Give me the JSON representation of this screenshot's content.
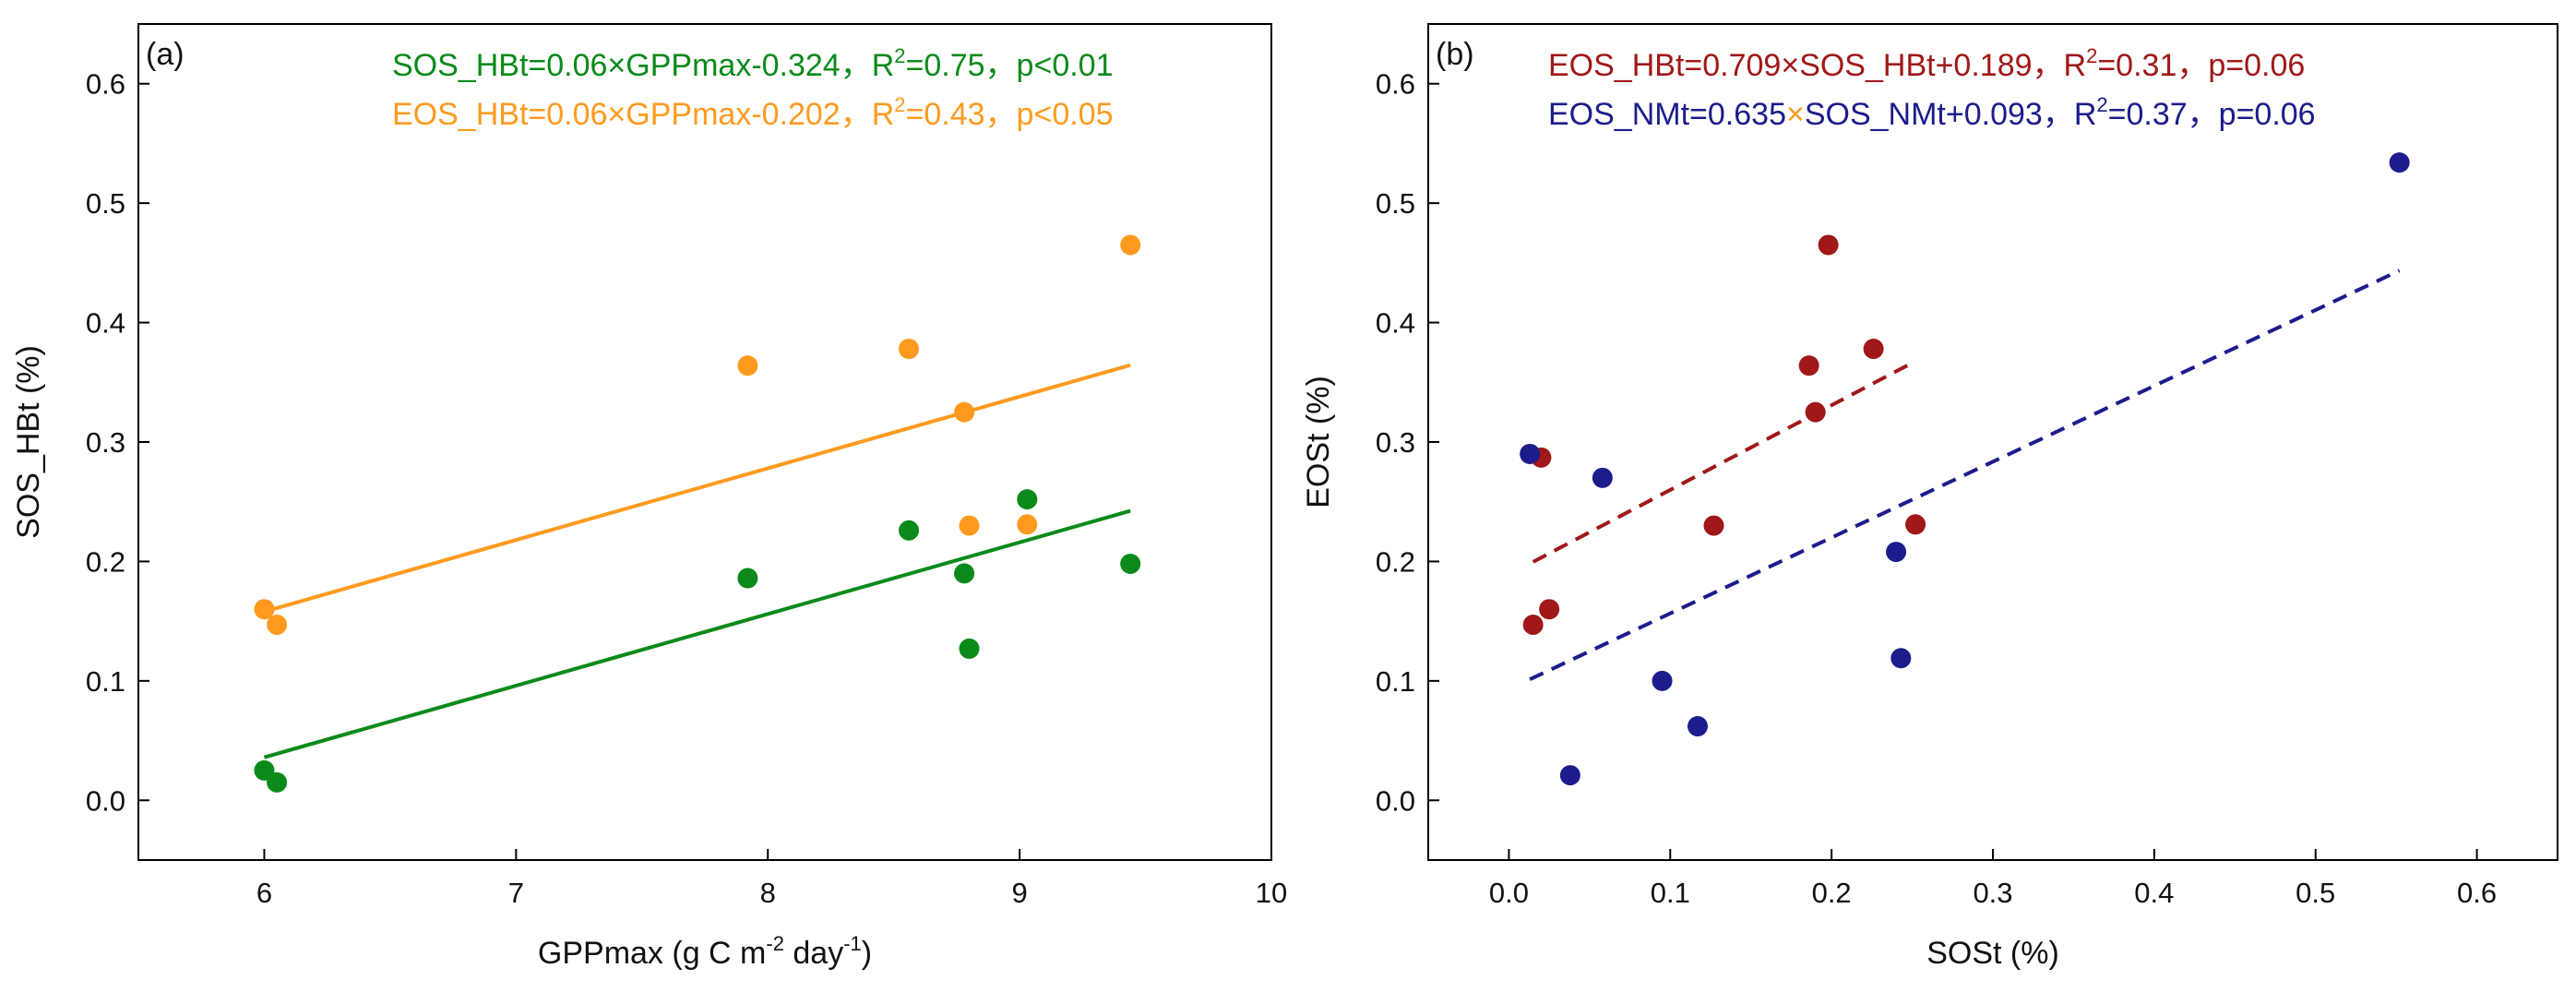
{
  "chart_data": [
    {
      "panel_label": "(a)",
      "type": "scatter",
      "xlabel": {
        "main": "GPPmax (g C m",
        "sup1": "-2",
        "mid": " day",
        "sup2": "-1",
        "end": ")"
      },
      "ylabel": "SOS_HBt (%)",
      "xlim": [
        5.5,
        10
      ],
      "ylim": [
        -0.05,
        0.65
      ],
      "xticks": [
        6,
        7,
        8,
        9,
        10
      ],
      "yticks": [
        0.0,
        0.1,
        0.2,
        0.3,
        0.4,
        0.5,
        0.6
      ],
      "series": [
        {
          "name": "SOS_HBt",
          "color": "#0a8a1a",
          "points": [
            [
              6.0,
              0.025
            ],
            [
              6.05,
              0.015
            ],
            [
              7.92,
              0.186
            ],
            [
              8.56,
              0.226
            ],
            [
              8.78,
              0.19
            ],
            [
              8.8,
              0.127
            ],
            [
              9.03,
              0.252
            ],
            [
              9.44,
              0.198
            ]
          ],
          "fit": {
            "slope": 0.06,
            "intercept": -0.324,
            "x_range": [
              6.0,
              9.44
            ],
            "dashed": false
          },
          "equation": {
            "pre": "SOS_HBt=0.06",
            "mult": "×",
            "post": "GPPmax-0.324，R",
            "sup": "2",
            "tail": "=0.75，p<0.01"
          }
        },
        {
          "name": "EOS_HBt",
          "color": "#ff9a1f",
          "points": [
            [
              6.0,
              0.16
            ],
            [
              6.05,
              0.147
            ],
            [
              7.92,
              0.364
            ],
            [
              8.56,
              0.378
            ],
            [
              8.78,
              0.325
            ],
            [
              8.8,
              0.23
            ],
            [
              9.03,
              0.231
            ],
            [
              9.44,
              0.465
            ]
          ],
          "fit": {
            "slope": 0.06,
            "intercept": -0.202,
            "x_range": [
              6.0,
              9.44
            ],
            "dashed": false
          },
          "equation": {
            "pre": "EOS_HBt=0.06",
            "mult": "×",
            "post": "GPPmax-0.202，R",
            "sup": "2",
            "tail": "=0.43，p<0.05"
          }
        }
      ]
    },
    {
      "panel_label": "(b)",
      "type": "scatter",
      "xlabel": {
        "main": "SOSt (%)"
      },
      "ylabel": "EOSt (%)",
      "xlim": [
        -0.05,
        0.65
      ],
      "ylim": [
        -0.05,
        0.65
      ],
      "xticks": [
        0.0,
        0.1,
        0.2,
        0.3,
        0.4,
        0.5,
        0.6
      ],
      "yticks": [
        0.0,
        0.1,
        0.2,
        0.3,
        0.4,
        0.5,
        0.6
      ],
      "series": [
        {
          "name": "EOS_HBt",
          "color": "#a01818",
          "points": [
            [
              0.015,
              0.147
            ],
            [
              0.02,
              0.287
            ],
            [
              0.025,
              0.16
            ],
            [
              0.127,
              0.23
            ],
            [
              0.186,
              0.364
            ],
            [
              0.19,
              0.325
            ],
            [
              0.198,
              0.465
            ],
            [
              0.226,
              0.378
            ],
            [
              0.252,
              0.231
            ]
          ],
          "fit": {
            "slope": 0.709,
            "intercept": 0.189,
            "x_range": [
              0.015,
              0.252
            ],
            "dashed": true
          },
          "equation": {
            "pre": "EOS_HBt=0.709",
            "mult": "×",
            "post": "SOS_HBt+0.189，R",
            "sup": "2",
            "tail": "=0.31，p=0.06"
          }
        },
        {
          "name": "EOS_NMt",
          "color": "#1c1c8c",
          "mult_color": "#ff9a1f",
          "points": [
            [
              0.013,
              0.29
            ],
            [
              0.038,
              0.021
            ],
            [
              0.058,
              0.27
            ],
            [
              0.095,
              0.1
            ],
            [
              0.117,
              0.062
            ],
            [
              0.24,
              0.208
            ],
            [
              0.243,
              0.119
            ],
            [
              0.552,
              0.534
            ]
          ],
          "fit": {
            "slope": 0.635,
            "intercept": 0.093,
            "x_range": [
              0.013,
              0.552
            ],
            "dashed": true
          },
          "equation": {
            "pre": "EOS_NMt=0.635",
            "mult": "×",
            "post": "SOS_NMt+0.093，R",
            "sup": "2",
            "tail": "=0.37，p=0.06"
          }
        }
      ]
    }
  ]
}
